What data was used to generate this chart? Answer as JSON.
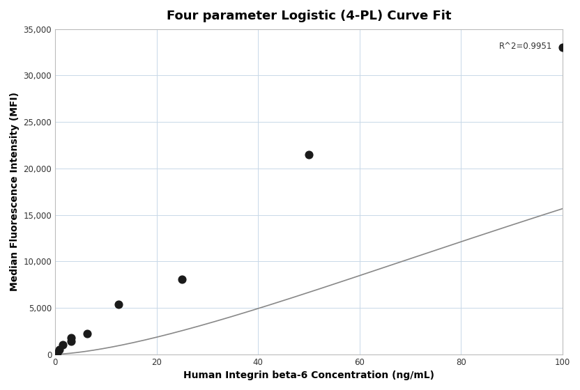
{
  "title": "Four parameter Logistic (4-PL) Curve Fit",
  "xlabel": "Human Integrin beta-6 Concentration (ng/mL)",
  "ylabel": "Median Fluorescence Intensity (MFI)",
  "scatter_x": [
    0.4,
    0.78,
    1.56,
    3.13,
    3.13,
    6.25,
    12.5,
    25.0,
    50.0,
    100.0
  ],
  "scatter_y": [
    130,
    500,
    1000,
    1400,
    1800,
    2200,
    5400,
    8100,
    21500,
    33000
  ],
  "xlim": [
    0,
    100
  ],
  "ylim": [
    0,
    35000
  ],
  "xticks": [
    0,
    20,
    40,
    60,
    80,
    100
  ],
  "yticks": [
    0,
    5000,
    10000,
    15000,
    20000,
    25000,
    30000,
    35000
  ],
  "r_squared": "R^2=0.9951",
  "curve_color": "#888888",
  "scatter_color": "#1a1a1a",
  "bg_color": "#ffffff",
  "grid_color": "#c8d8e8",
  "title_fontsize": 13,
  "label_fontsize": 10
}
